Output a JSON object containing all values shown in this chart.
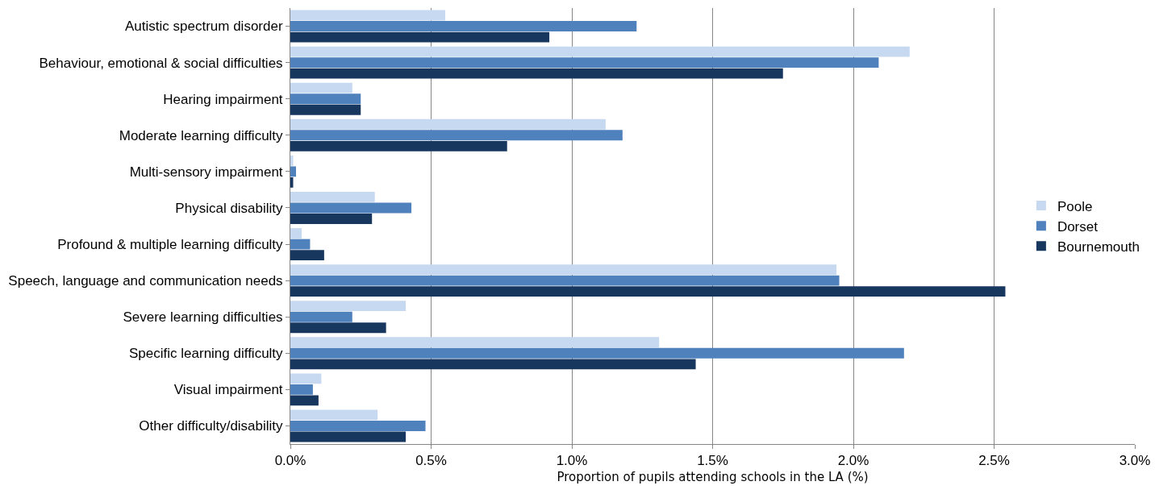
{
  "chart_data": {
    "type": "bar",
    "orientation": "horizontal",
    "xlabel": "Proportion of pupils attending schools in the LA (%)",
    "categories": [
      "Autistic spectrum disorder",
      "Behaviour, emotional & social difficulties",
      "Hearing impairment",
      "Moderate learning difficulty",
      "Multi-sensory impairment",
      "Physical disability",
      "Profound & multiple learning difficulty",
      "Speech, language and communication needs",
      "Severe learning difficulties",
      "Specific learning difficulty",
      "Visual impairment",
      "Other difficulty/disability"
    ],
    "series": [
      {
        "name": "Poole",
        "color": "#c6d9f1",
        "values": [
          0.55,
          2.2,
          0.22,
          1.12,
          0.01,
          0.3,
          0.04,
          1.94,
          0.41,
          1.31,
          0.11,
          0.31
        ]
      },
      {
        "name": "Dorset",
        "color": "#4f81bd",
        "values": [
          1.23,
          2.09,
          0.25,
          1.18,
          0.02,
          0.43,
          0.07,
          1.95,
          0.22,
          2.18,
          0.08,
          0.48
        ]
      },
      {
        "name": "Bournemouth",
        "color": "#17375e",
        "values": [
          0.92,
          1.75,
          0.25,
          0.77,
          0.01,
          0.29,
          0.12,
          2.54,
          0.34,
          1.44,
          0.1,
          0.41
        ]
      }
    ],
    "xlim": [
      0,
      3
    ],
    "xticks": [
      {
        "value": 0,
        "label": "0.0%"
      },
      {
        "value": 0.5,
        "label": "0.5%"
      },
      {
        "value": 1,
        "label": "1.0%"
      },
      {
        "value": 1.5,
        "label": "1.5%"
      },
      {
        "value": 2,
        "label": "2.0%"
      },
      {
        "value": 2.5,
        "label": "2.5%"
      },
      {
        "value": 3,
        "label": "3.0%"
      }
    ],
    "grid": "x",
    "legend": "right"
  }
}
